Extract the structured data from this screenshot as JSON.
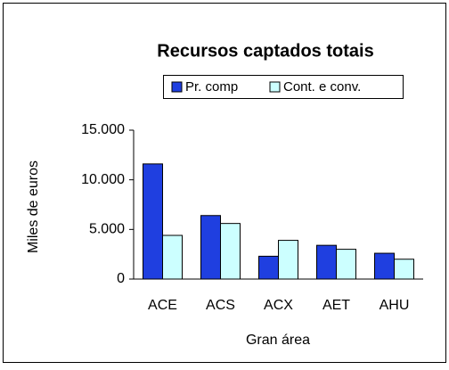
{
  "chart_data": {
    "type": "bar",
    "title": "Recursos captados totais",
    "categories": [
      "ACE",
      "ACS",
      "ACX",
      "AET",
      "AHU"
    ],
    "series": [
      {
        "name": "Pr. comp",
        "color": "#1f3fe0",
        "values": [
          11600,
          6400,
          2300,
          3400,
          2600
        ]
      },
      {
        "name": "Cont. e conv.",
        "color": "#ccffff",
        "values": [
          4400,
          5600,
          3900,
          3000,
          2000
        ]
      }
    ],
    "ylim": [
      0,
      15000
    ],
    "yticks": [
      0,
      {
        "value": 5000,
        "label": "5.000"
      },
      {
        "value": 10000,
        "label": "10.000"
      },
      {
        "value": 15000,
        "label": "15.000"
      }
    ],
    "ylabel": "Miles de euros",
    "xlabel": "Gran área",
    "legend": "top"
  }
}
